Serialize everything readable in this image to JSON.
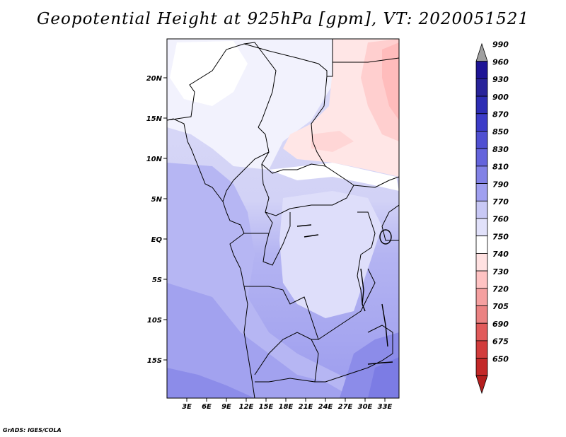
{
  "title": "Geopotential Height at 925hPa [gpm], VT: 2020051521",
  "credit": "GrADS: IGES/COLA",
  "map": {
    "variable": "Geopotential Height",
    "level": "925hPa",
    "units": "gpm",
    "valid_time": "2020051521",
    "lat_labels": [
      "20N",
      "15N",
      "10N",
      "5N",
      "EQ",
      "5S",
      "10S",
      "15S"
    ],
    "lon_labels": [
      "3E",
      "6E",
      "9E",
      "12E",
      "15E",
      "18E",
      "21E",
      "24E",
      "27E",
      "30E",
      "33E"
    ]
  },
  "colorbar": {
    "levels": [
      "990",
      "960",
      "930",
      "900",
      "870",
      "850",
      "830",
      "810",
      "790",
      "770",
      "760",
      "750",
      "740",
      "730",
      "720",
      "705",
      "690",
      "675",
      "650"
    ],
    "colors": [
      "#a0a0a0",
      "#1e1496",
      "#28239a",
      "#2d2db4",
      "#3c3cc8",
      "#5050d2",
      "#6464dc",
      "#8282e6",
      "#a0a0f0",
      "#c8c8f5",
      "#e1e1fa",
      "#ffffff",
      "#ffe1e1",
      "#ffc3c3",
      "#f5a0a0",
      "#eb8282",
      "#e15a5a",
      "#d23c3c",
      "#c32828",
      "#b41e1e"
    ]
  }
}
